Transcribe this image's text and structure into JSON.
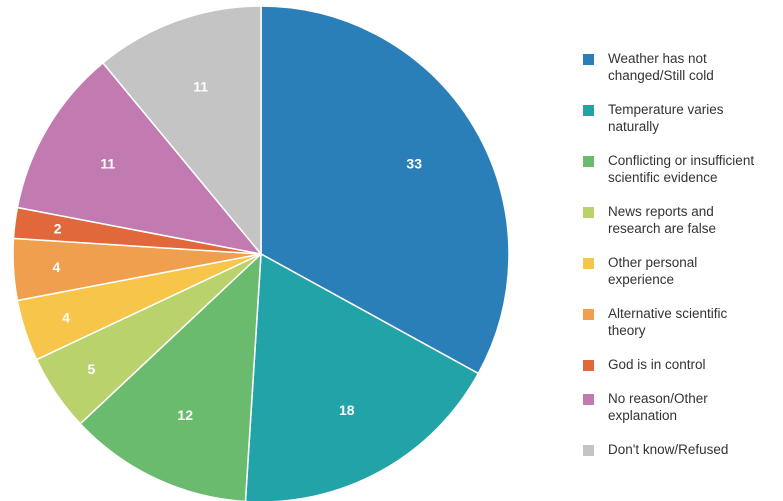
{
  "chart_data": {
    "type": "pie",
    "title": "",
    "slices": [
      {
        "label": "Weather has not changed/Still cold",
        "value": 33,
        "color": "#2a7fb8"
      },
      {
        "label": "Temperature varies naturally",
        "value": 18,
        "color": "#22a3a8"
      },
      {
        "label": "Conflicting or insufficient scientific evidence",
        "value": 12,
        "color": "#6bbb6e"
      },
      {
        "label": "News reports and research are false",
        "value": 5,
        "color": "#b9d26b"
      },
      {
        "label": "Other personal experience",
        "value": 4,
        "color": "#f6c54a"
      },
      {
        "label": "Alternative scientific theory",
        "value": 4,
        "color": "#ef9f4e"
      },
      {
        "label": "God is in control",
        "value": 2,
        "color": "#e0683a"
      },
      {
        "label": "No reason/Other explanation",
        "value": 11,
        "color": "#c17bb0"
      },
      {
        "label": "Don't know/Refused",
        "value": 11,
        "color": "#c4c4c4"
      }
    ],
    "legend_position": "right",
    "start_angle": "12 o'clock",
    "direction": "clockwise"
  },
  "legend": {
    "items": [
      {
        "line1": "Weather has not",
        "line2": "changed/Still cold"
      },
      {
        "line1": "Temperature varies",
        "line2": "naturally"
      },
      {
        "line1": "Conflicting or insufficient",
        "line2": "scientific evidence"
      },
      {
        "line1": "News reports and",
        "line2": "research are false"
      },
      {
        "line1": "Other personal",
        "line2": "experience"
      },
      {
        "line1": "Alternative scientific",
        "line2": "theory"
      },
      {
        "line1": "God is in control",
        "line2": ""
      },
      {
        "line1": "No reason/Other",
        "line2": "explanation"
      },
      {
        "line1": "Don't know/Refused",
        "line2": ""
      }
    ]
  }
}
